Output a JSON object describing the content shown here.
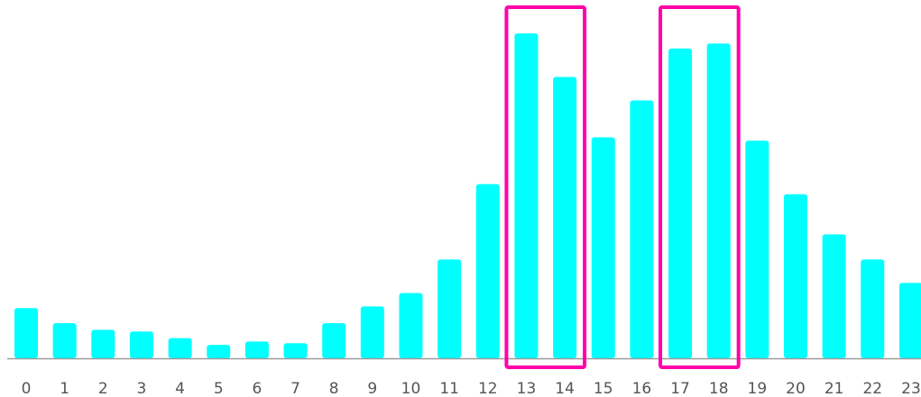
{
  "colors": {
    "bar": "#00FFFF",
    "highlight": "#FF00AA",
    "axis": "#9A9A9A",
    "tick_text": "#555555"
  },
  "chart_data": {
    "type": "bar",
    "title": "",
    "xlabel": "",
    "ylabel": "",
    "categories": [
      "0",
      "1",
      "2",
      "3",
      "4",
      "5",
      "6",
      "7",
      "8",
      "9",
      "10",
      "11",
      "12",
      "13",
      "14",
      "15",
      "16",
      "17",
      "18",
      "19",
      "20",
      "21",
      "22",
      "23"
    ],
    "values": [
      15,
      10.5,
      8.5,
      8,
      6,
      4,
      5,
      4.5,
      10.5,
      15.5,
      19.5,
      29.5,
      52,
      97,
      84,
      66,
      77,
      92.5,
      94,
      65,
      49,
      37,
      29.5,
      22.5
    ],
    "ylim": [
      0,
      100
    ],
    "grid": false,
    "y_axis_visible": false,
    "highlights": [
      {
        "categories": [
          "13",
          "14"
        ]
      },
      {
        "categories": [
          "17",
          "18"
        ]
      }
    ]
  }
}
